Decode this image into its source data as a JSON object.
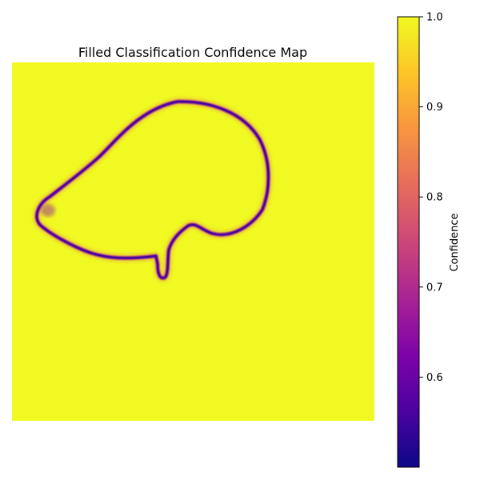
{
  "chart_data": {
    "type": "heatmap",
    "title": "Filled Classification Confidence Map",
    "xlabel": "",
    "ylabel": "",
    "axes_visible": false,
    "colormap": "plasma",
    "background_value": 0.98,
    "boundary_min_value": 0.5,
    "description_of_values": "Nearly uniform high confidence (~0.98) with a thin closed low-confidence contour (~0.5–0.7) outlining a blob shape with a small downward notch.",
    "colorbar": {
      "label": "Confidence",
      "range": [
        0.5,
        1.0
      ],
      "ticks": [
        1.0,
        0.9,
        0.8,
        0.7,
        0.6
      ],
      "tick_labels": [
        "1.0",
        "0.9",
        "0.8",
        "0.7",
        "0.6"
      ]
    },
    "colors": {
      "high": "#f0f921",
      "low": "#0d0887",
      "boundary_core": "#3b049a",
      "boundary_mid": "#8b0aa5",
      "boundary_halo": "#e16462"
    }
  }
}
